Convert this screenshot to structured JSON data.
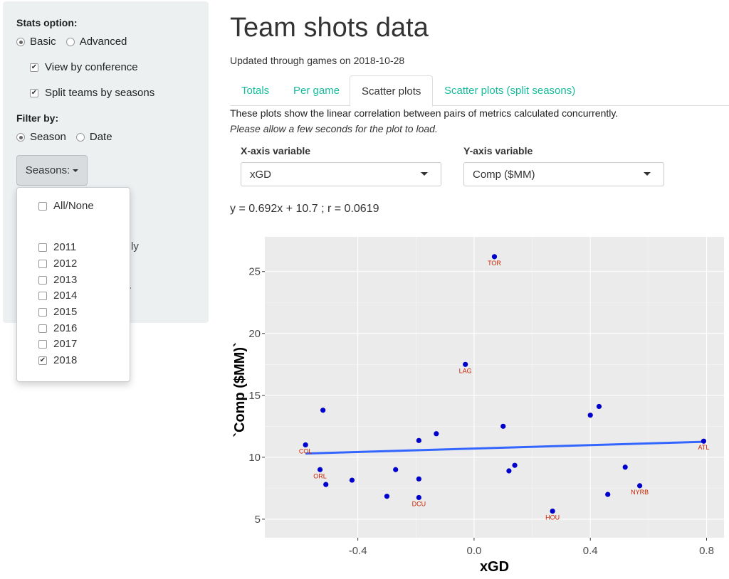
{
  "sidebar": {
    "stats_option_label": "Stats option:",
    "stats_options": [
      "Basic",
      "Advanced"
    ],
    "view_by_conference": "View by conference",
    "split_teams": "Split teams by seasons",
    "filter_by_label": "Filter by:",
    "filter_options": [
      "Season",
      "Date"
    ],
    "seasons_button": "Seasons:",
    "behind_text": "ly"
  },
  "dropdown": {
    "all_none": "All/None",
    "years": [
      "2011",
      "2012",
      "2013",
      "2014",
      "2015",
      "2016",
      "2017",
      "2018"
    ],
    "checked": [
      "2018"
    ]
  },
  "main": {
    "title": "Team shots data",
    "updated": "Updated through games on 2018-10-28",
    "tabs": [
      "Totals",
      "Per game",
      "Scatter plots",
      "Scatter plots (split seasons)"
    ],
    "active_tab": "Scatter plots",
    "desc1": "These plots show the linear correlation between pairs of metrics calculated concurrently.",
    "desc2": "Please allow a few seconds for the plot to load.",
    "x_label": "X-axis variable",
    "y_label": "Y-axis variable",
    "x_value": "xGD",
    "y_value": "Comp ($MM)",
    "equation": "y = 0.692x + 10.7 ; r = 0.0619"
  },
  "colors": {
    "accent": "#18bc9c",
    "point": "#0000cc",
    "label": "#cc2200",
    "trend": "#3366ff",
    "panel": "#ebebeb"
  },
  "chart_data": {
    "type": "scatter",
    "xlabel": "xGD",
    "ylabel": "`Comp ($MM)`",
    "xlim": [
      -0.72,
      0.86
    ],
    "ylim": [
      3.5,
      27.8
    ],
    "xticks": [
      -0.4,
      0.0,
      0.4,
      0.8
    ],
    "xtick_labels": [
      "-0.4",
      "0.0",
      "0.4",
      "0.8"
    ],
    "yticks": [
      5,
      10,
      15,
      20,
      25
    ],
    "yticks_labels": [
      "5",
      "10",
      "15",
      "20",
      "25"
    ],
    "grid": true,
    "points": [
      {
        "x": 0.07,
        "y": 26.2,
        "label": "TOR"
      },
      {
        "x": -0.03,
        "y": 17.5,
        "label": "LAG"
      },
      {
        "x": -0.52,
        "y": 13.8,
        "label": ""
      },
      {
        "x": 0.4,
        "y": 13.4,
        "label": ""
      },
      {
        "x": 0.43,
        "y": 14.1,
        "label": ""
      },
      {
        "x": -0.13,
        "y": 11.9,
        "label": ""
      },
      {
        "x": -0.19,
        "y": 11.35,
        "label": ""
      },
      {
        "x": 0.1,
        "y": 12.5,
        "label": ""
      },
      {
        "x": -0.58,
        "y": 11.0,
        "label": "COL"
      },
      {
        "x": 0.79,
        "y": 11.3,
        "label": "ATL"
      },
      {
        "x": -0.53,
        "y": 9.0,
        "label": "ORL"
      },
      {
        "x": -0.51,
        "y": 7.8,
        "label": ""
      },
      {
        "x": -0.42,
        "y": 8.15,
        "label": ""
      },
      {
        "x": -0.27,
        "y": 9.0,
        "label": ""
      },
      {
        "x": -0.19,
        "y": 8.25,
        "label": ""
      },
      {
        "x": -0.3,
        "y": 6.85,
        "label": ""
      },
      {
        "x": -0.19,
        "y": 6.75,
        "label": "DCU"
      },
      {
        "x": 0.12,
        "y": 8.9,
        "label": ""
      },
      {
        "x": 0.14,
        "y": 9.35,
        "label": ""
      },
      {
        "x": 0.27,
        "y": 5.65,
        "label": "HOU"
      },
      {
        "x": 0.46,
        "y": 7.0,
        "label": ""
      },
      {
        "x": 0.52,
        "y": 9.2,
        "label": ""
      },
      {
        "x": 0.57,
        "y": 7.7,
        "label": "NYRB"
      }
    ],
    "trendline": {
      "x": [
        -0.58,
        0.79
      ],
      "y": [
        10.3,
        11.25
      ]
    }
  }
}
